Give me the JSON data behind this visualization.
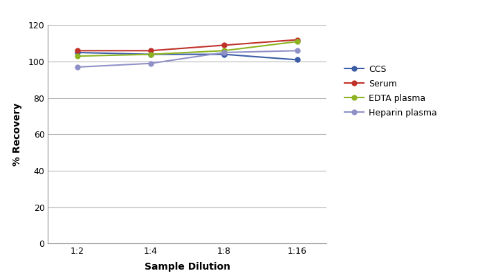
{
  "x_labels": [
    "1:2",
    "1:4",
    "1:8",
    "1:16"
  ],
  "x_positions": [
    0,
    1,
    2,
    3
  ],
  "series": [
    {
      "label": "CCS",
      "color": "#3c5da6",
      "values": [
        105,
        104,
        104,
        101
      ]
    },
    {
      "label": "Serum",
      "color": "#c0312a",
      "values": [
        106,
        106,
        109,
        112
      ]
    },
    {
      "label": "EDTA plasma",
      "color": "#8db320",
      "values": [
        103,
        104,
        106,
        111
      ]
    },
    {
      "label": "Heparin plasma",
      "color": "#9090c8",
      "values": [
        97,
        99,
        105,
        106
      ]
    }
  ],
  "ylabel": "% Recovery",
  "xlabel": "Sample Dilution",
  "ylim": [
    0,
    120
  ],
  "yticks": [
    0,
    20,
    40,
    60,
    80,
    100,
    120
  ],
  "background_color": "#ffffff",
  "grid_color": "#b8b8b8",
  "marker": "o",
  "markersize": 5,
  "linewidth": 1.5,
  "figsize": [
    6.94,
    4.05
  ],
  "dpi": 100
}
